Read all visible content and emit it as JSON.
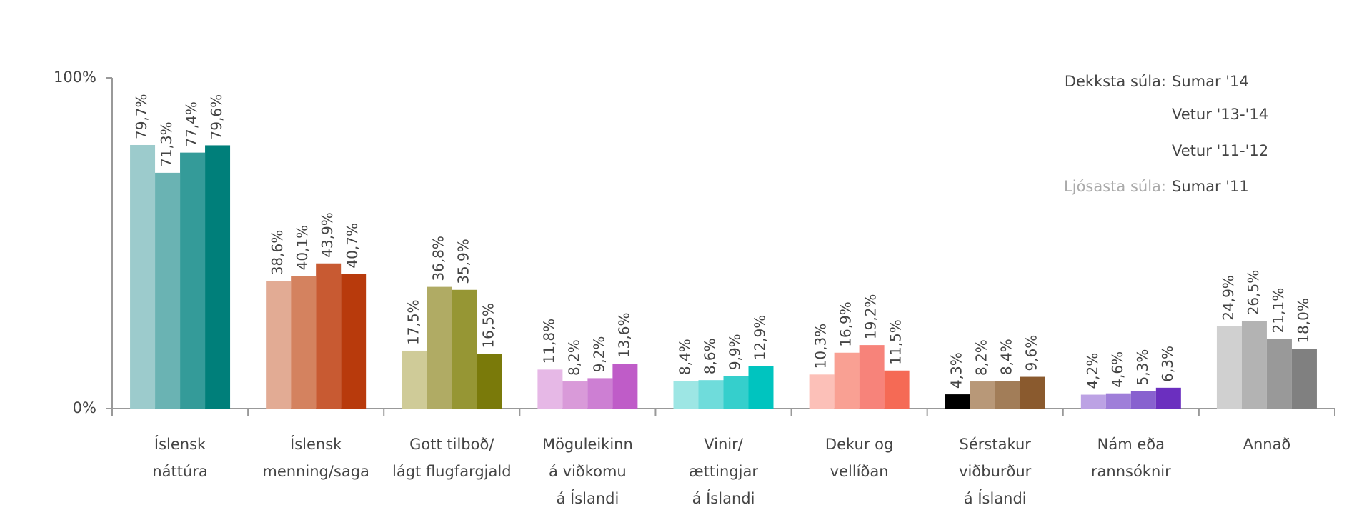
{
  "chart_data": {
    "type": "bar",
    "categories": [
      [
        "Íslensk",
        "náttúra"
      ],
      [
        "Íslensk",
        "menning/saga"
      ],
      [
        "Gott tilboð/",
        "lágt flugfargjald"
      ],
      [
        "Möguleikinn",
        "á viðkomu",
        "á Íslandi"
      ],
      [
        "Vinir/",
        "ættingjar",
        "á Íslandi"
      ],
      [
        "Dekur og",
        "vellíðan"
      ],
      [
        "Sérstakur",
        "viðburður",
        "á Íslandi"
      ],
      [
        "Nám eða",
        "rannsóknir"
      ],
      [
        "Annað"
      ]
    ],
    "series": [
      {
        "name": "Sumar '11",
        "color": [
          "#9ccbcc",
          "#e2ab94",
          "#cfcb98",
          "#e6b8e6",
          "#9de6e4",
          "#fcc0b8",
          "#d4beа8",
          "#bca2e4",
          "#d0d0d0"
        ],
        "values": [
          79.7,
          38.6,
          17.5,
          11.8,
          8.4,
          10.3,
          4.3,
          4.2,
          24.9
        ],
        "value_labels": [
          "79,7%",
          "38,6%",
          "17,5%",
          "11,8%",
          "8,4%",
          "10,3%",
          "4,3%",
          "4,2%",
          "24,9%"
        ]
      },
      {
        "name": "Vetur '11-'12",
        "color": [
          "#6ab3b3",
          "#d4825f",
          "#b0ab64",
          "#d99ad9",
          "#6fdcdb",
          "#f9a093",
          "#b89878",
          "#9f7ed9",
          "#b3b3b3"
        ],
        "values": [
          71.3,
          40.1,
          36.8,
          8.2,
          8.6,
          16.9,
          8.2,
          4.6,
          26.5
        ],
        "value_labels": [
          "71,3%",
          "40,1%",
          "36,8%",
          "8,2%",
          "8,6%",
          "16,9%",
          "8,2%",
          "4,6%",
          "26,5%"
        ]
      },
      {
        "name": "Vetur '13-'14",
        "color": [
          "#349b99",
          "#c85a32",
          "#969634",
          "#cd7fd3",
          "#35cfcc",
          "#f7837a",
          "#a27d58",
          "#8861cf",
          "#999999"
        ],
        "values": [
          77.4,
          43.9,
          35.9,
          9.2,
          9.9,
          19.2,
          8.4,
          5.3,
          21.1
        ],
        "value_labels": [
          "77,4%",
          "43,9%",
          "35,9%",
          "9,2%",
          "9,9%",
          "19,2%",
          "8,4%",
          "5,3%",
          "21,1%"
        ]
      },
      {
        "name": "Sumar '14",
        "color": [
          "#007f7a",
          "#b83a0c",
          "#7a7a0a",
          "#bf5cc8",
          "#00c4bf",
          "#f56a55",
          "#8a5a2e",
          "#6b2fbf",
          "#808080"
        ],
        "values": [
          79.6,
          40.7,
          16.5,
          13.6,
          12.9,
          11.5,
          9.6,
          6.3,
          18.0
        ],
        "value_labels": [
          "79,6%",
          "40,7%",
          "16,5%",
          "13,6%",
          "12,9%",
          "11,5%",
          "9,6%",
          "6,3%",
          "18,0%"
        ]
      }
    ],
    "legend_notes": {
      "darkest": "Dekksta súla:",
      "lightest": "Ljósasta súla:"
    },
    "ylim": [
      0,
      100
    ],
    "yticks": [
      {
        "value": 0,
        "label": "0%"
      },
      {
        "value": 100,
        "label": "100%"
      }
    ],
    "grid": false
  }
}
